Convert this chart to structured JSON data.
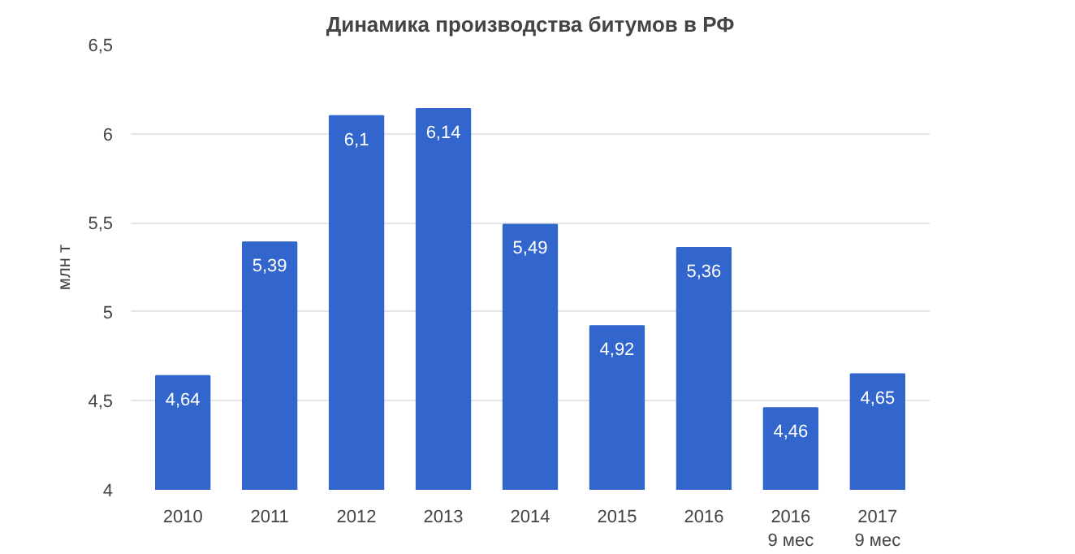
{
  "chart_data": {
    "type": "bar",
    "title": "Динамика производства битумов в РФ",
    "ylabel": "млн т",
    "categories": [
      "2010",
      "2011",
      "2012",
      "2013",
      "2014",
      "2015",
      "2016",
      "2016\n9 мес",
      "2017\n9 мес"
    ],
    "values": [
      4.64,
      5.39,
      6.1,
      6.14,
      5.49,
      4.92,
      5.36,
      4.46,
      4.65
    ],
    "value_labels": [
      "4,64",
      "5,39",
      "6,1",
      "6,14",
      "5,49",
      "4,92",
      "5,36",
      "4,46",
      "4,65"
    ],
    "color": "#3366cc",
    "ylim": [
      4,
      6.5
    ],
    "yticks": [
      4,
      {
        "value": 4.5,
        "label": "4,5"
      },
      5,
      {
        "value": 5.5,
        "label": "5,5"
      },
      6,
      {
        "value": 6.5,
        "label": "6,5"
      }
    ],
    "grid": "y"
  }
}
